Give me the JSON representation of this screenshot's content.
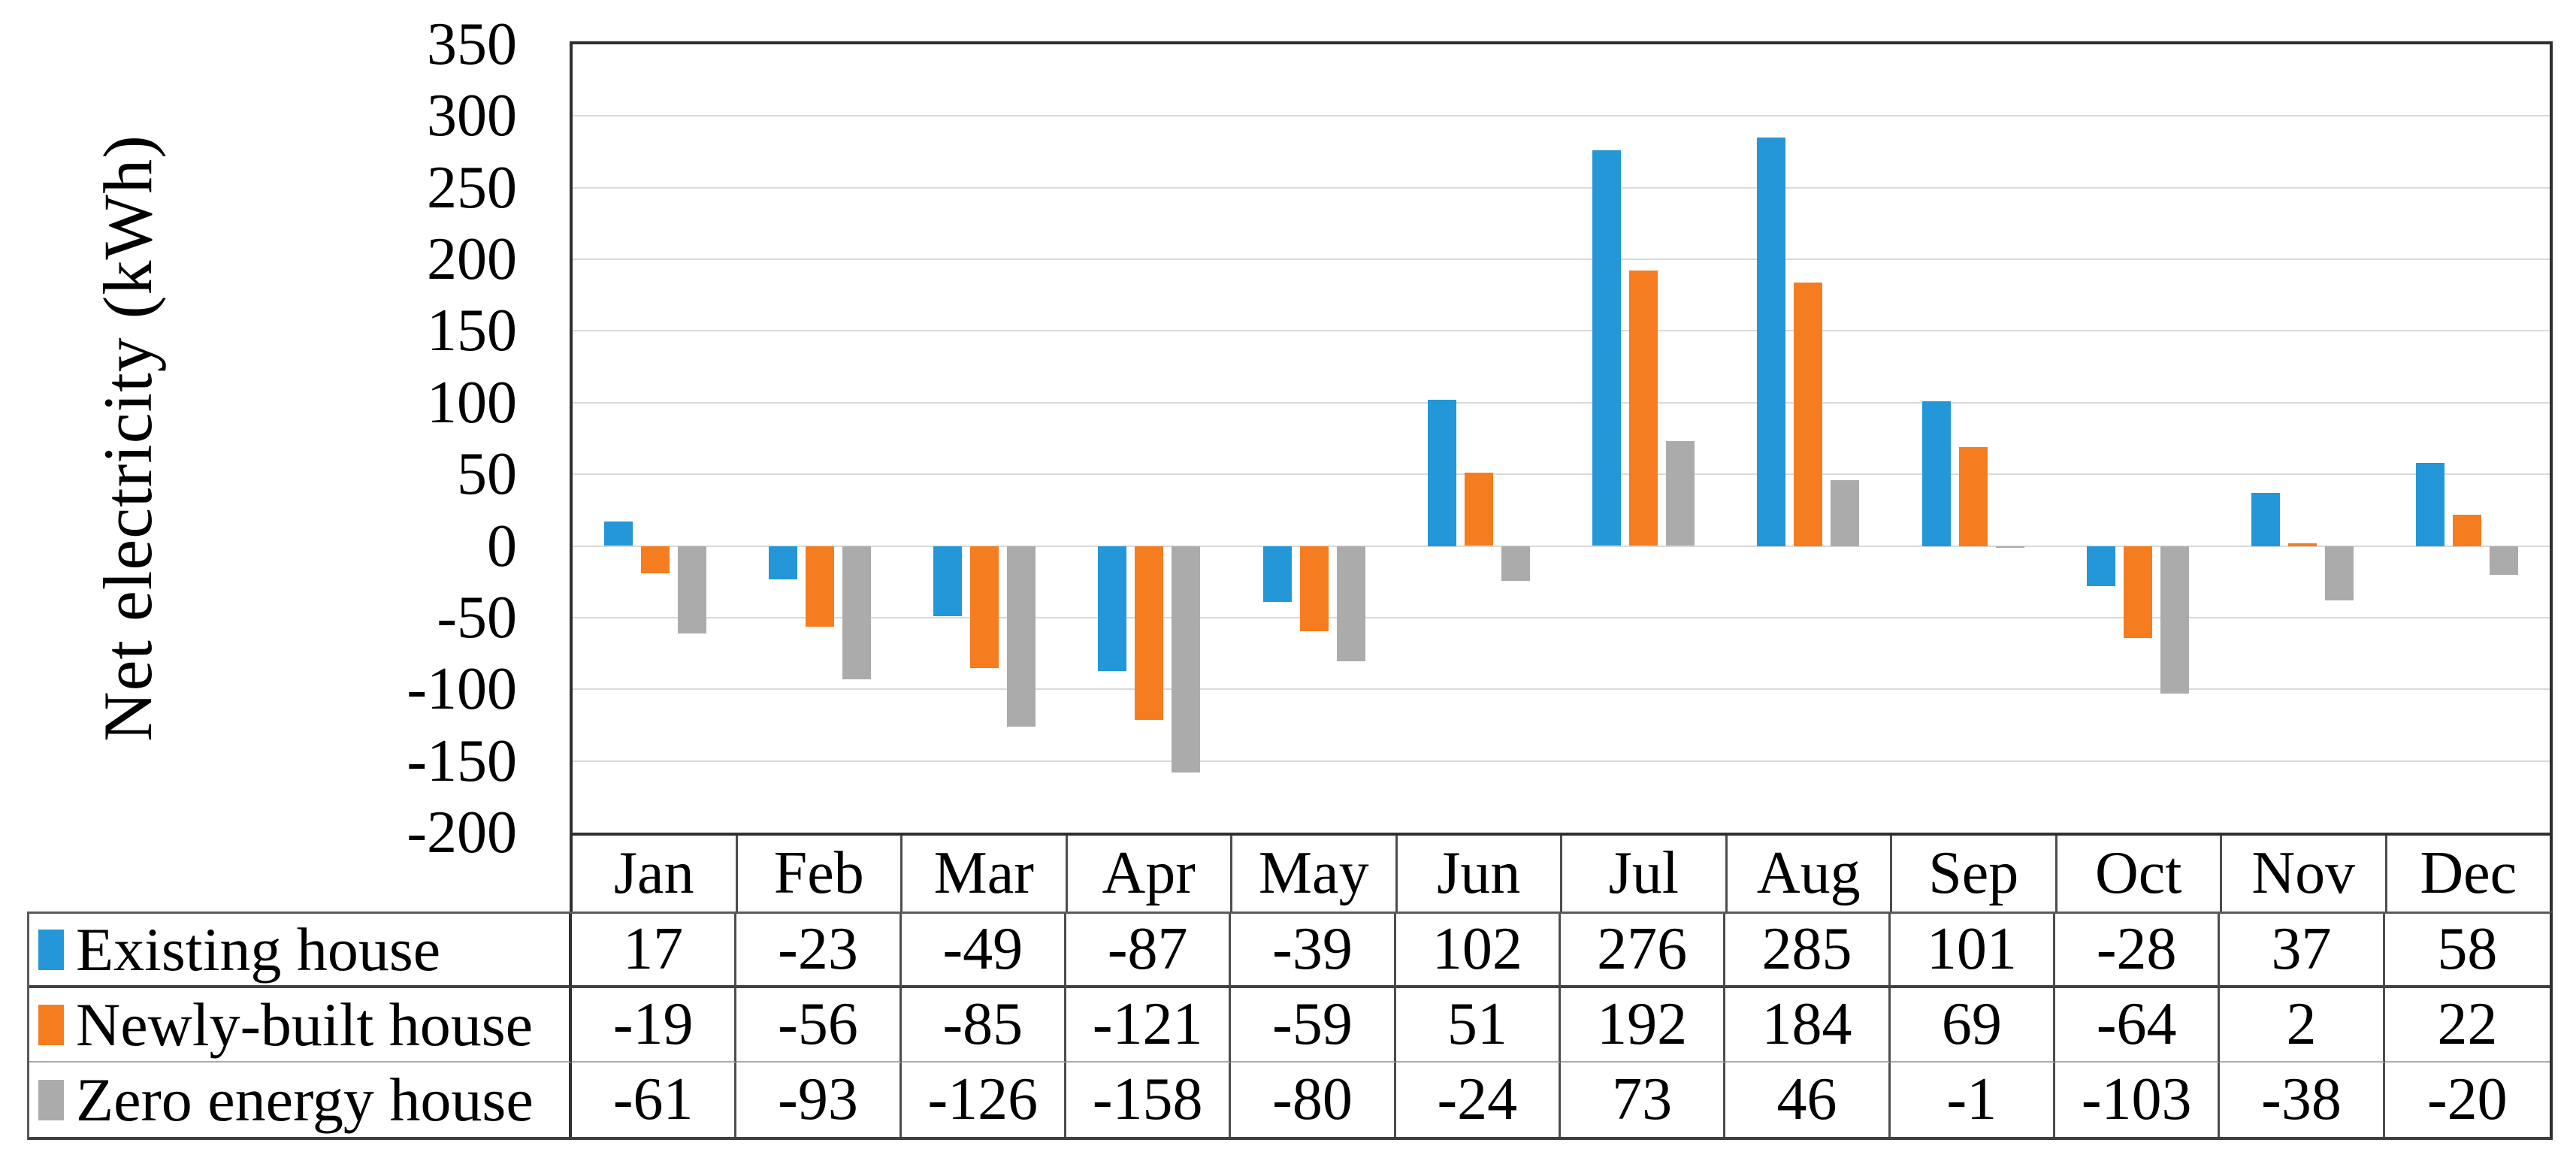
{
  "chart_data": {
    "type": "bar",
    "title": "",
    "ylabel": "Net electricity (kWh)",
    "categories": [
      "Jan",
      "Feb",
      "Mar",
      "Apr",
      "May",
      "Jun",
      "Jul",
      "Aug",
      "Sep",
      "Oct",
      "Nov",
      "Dec"
    ],
    "series": [
      {
        "name": "Existing house",
        "color": "#2397d8",
        "values": [
          17,
          -23,
          -49,
          -87,
          -39,
          102,
          276,
          285,
          101,
          -28,
          37,
          58
        ]
      },
      {
        "name": "Newly-built house",
        "color": "#f57d20",
        "values": [
          -19,
          -56,
          -85,
          -121,
          -59,
          51,
          192,
          184,
          69,
          -64,
          2,
          22
        ]
      },
      {
        "name": "Zero energy house",
        "color": "#ababab",
        "values": [
          -61,
          -93,
          -126,
          -158,
          -80,
          -24,
          73,
          46,
          -1,
          -103,
          -38,
          -20
        ]
      }
    ],
    "ylim": [
      -200,
      350
    ],
    "ytick_step": 50,
    "yticks": [
      350,
      300,
      250,
      200,
      150,
      100,
      50,
      0,
      -50,
      -100,
      -150,
      -200
    ],
    "grid": "horizontal",
    "gridline_color": "#d9d9d9",
    "legend_position": "table-row-headers-left",
    "data_table_below_axis": true
  }
}
